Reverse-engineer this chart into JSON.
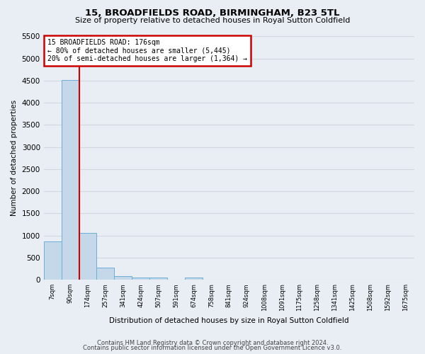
{
  "title1": "15, BROADFIELDS ROAD, BIRMINGHAM, B23 5TL",
  "title2": "Size of property relative to detached houses in Royal Sutton Coldfield",
  "xlabel": "Distribution of detached houses by size in Royal Sutton Coldfield",
  "ylabel": "Number of detached properties",
  "footer1": "Contains HM Land Registry data © Crown copyright and database right 2024.",
  "footer2": "Contains public sector information licensed under the Open Government Licence v3.0.",
  "bin_labels": [
    "7sqm",
    "90sqm",
    "174sqm",
    "257sqm",
    "341sqm",
    "424sqm",
    "507sqm",
    "591sqm",
    "674sqm",
    "758sqm",
    "841sqm",
    "924sqm",
    "1008sqm",
    "1091sqm",
    "1175sqm",
    "1258sqm",
    "1341sqm",
    "1425sqm",
    "1508sqm",
    "1592sqm",
    "1675sqm"
  ],
  "bar_values": [
    870,
    4520,
    1060,
    275,
    75,
    55,
    45,
    0,
    45,
    0,
    0,
    0,
    0,
    0,
    0,
    0,
    0,
    0,
    0,
    0,
    0
  ],
  "bar_color": "#c5d8ea",
  "bar_edge_color": "#6aaed6",
  "property_label": "15 BROADFIELDS ROAD: 176sqm",
  "annotation_line1": "← 80% of detached houses are smaller (5,445)",
  "annotation_line2": "20% of semi-detached houses are larger (1,364) →",
  "vline_color": "#cc0000",
  "annotation_box_edge": "#cc0000",
  "annotation_box_bg": "#ffffff",
  "ylim": [
    0,
    5500
  ],
  "yticks": [
    0,
    500,
    1000,
    1500,
    2000,
    2500,
    3000,
    3500,
    4000,
    4500,
    5000,
    5500
  ],
  "grid_color": "#d0d8e0",
  "bg_color": "#e8eef4",
  "vline_x_index": 1.5
}
